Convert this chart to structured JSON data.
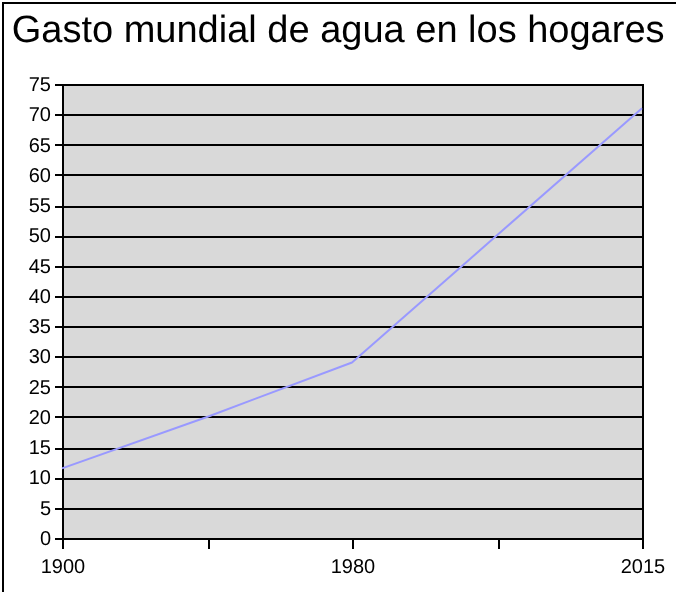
{
  "chart_data": {
    "type": "line",
    "title": "Gasto mundial de agua en los hogares",
    "categories": [
      "1900",
      null,
      "1980",
      null,
      "2015"
    ],
    "series": [
      {
        "color": "#9999ff",
        "values": [
          11.5,
          20,
          29,
          50,
          71
        ]
      }
    ],
    "ylim": [
      0,
      75
    ],
    "yticks": [
      0,
      5,
      10,
      15,
      20,
      25,
      30,
      35,
      40,
      45,
      50,
      55,
      60,
      65,
      70,
      75
    ],
    "grid": "y",
    "legend": false,
    "marker": "none"
  }
}
